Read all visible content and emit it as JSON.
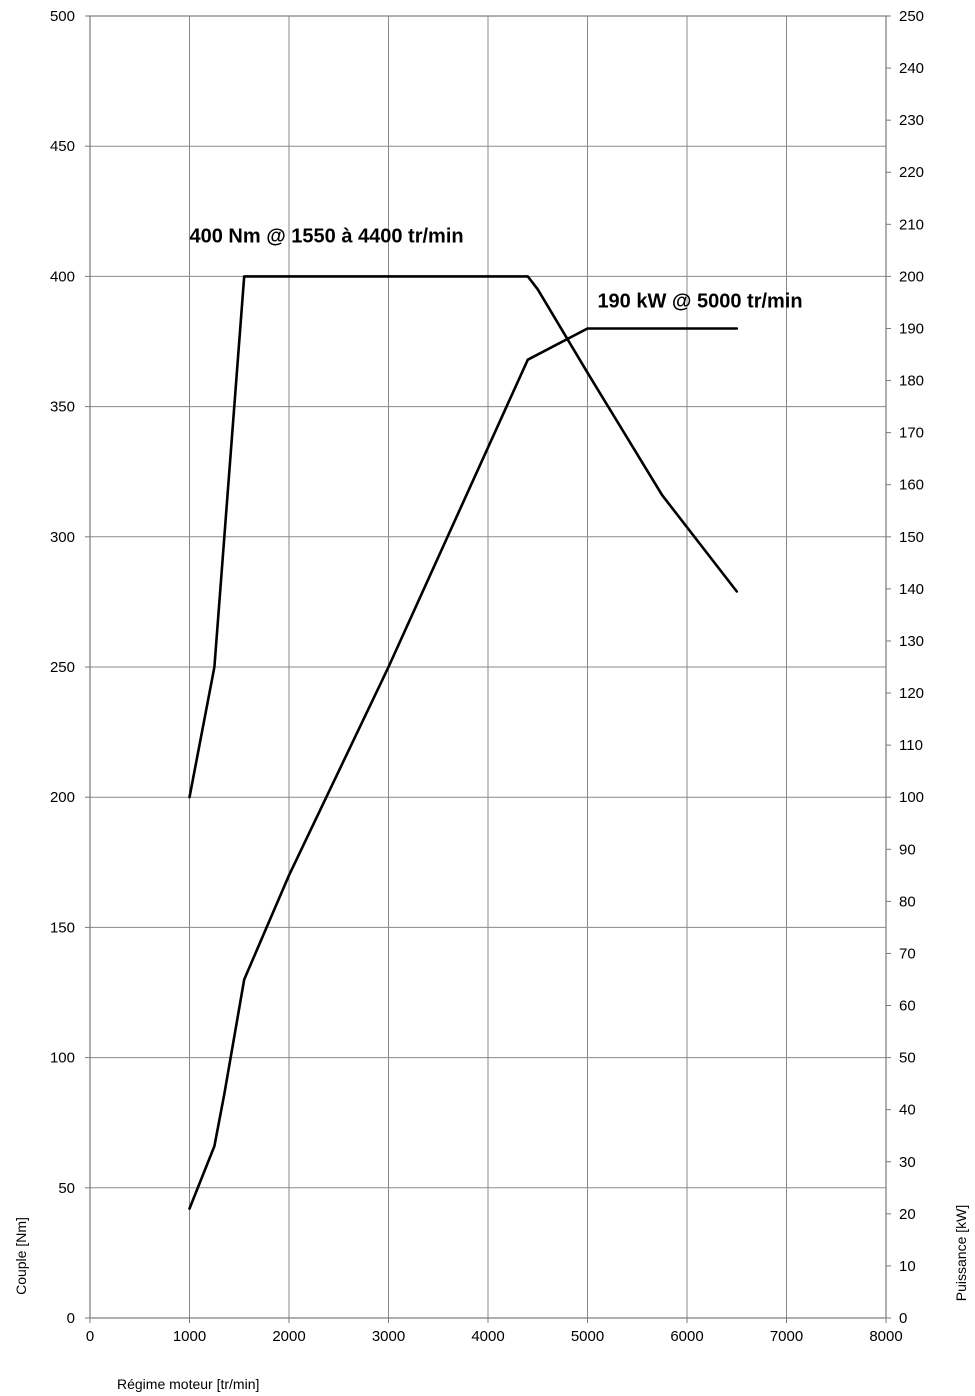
{
  "chart_data": {
    "type": "line",
    "xlabel": "Régime moteur [tr/min]",
    "ylabel_left": "Couple [Nm]",
    "ylabel_right": "Puissance [kW]",
    "xlim": [
      0,
      8000
    ],
    "ylim_left": [
      0,
      500
    ],
    "ylim_right": [
      0,
      250
    ],
    "x_ticks": [
      0,
      1000,
      2000,
      3000,
      4000,
      5000,
      6000,
      7000,
      8000
    ],
    "y_left_ticks": [
      0,
      50,
      100,
      150,
      200,
      250,
      300,
      350,
      400,
      450,
      500
    ],
    "y_right_ticks": [
      0,
      10,
      20,
      30,
      40,
      50,
      60,
      70,
      80,
      90,
      100,
      110,
      120,
      130,
      140,
      150,
      160,
      170,
      180,
      190,
      200,
      210,
      220,
      230,
      240,
      250
    ],
    "grid": true,
    "series": [
      {
        "axis": "left",
        "x": [
          1000,
          1250,
          1550,
          4400,
          4500,
          5000,
          5750,
          6500
        ],
        "values": [
          200,
          250,
          400,
          400,
          395,
          363,
          316,
          279
        ]
      },
      {
        "axis": "right",
        "x": [
          1000,
          1250,
          1350,
          1550,
          2000,
          3000,
          4400,
          5000,
          6500
        ],
        "values": [
          21,
          33,
          43,
          65,
          85,
          125,
          184,
          190,
          190
        ]
      }
    ],
    "annotations": [
      {
        "text": "400 Nm @ 1550 à 4400 tr/min",
        "x": 1000,
        "y": 413,
        "axis": "left"
      },
      {
        "text": "190 kW @ 5000 tr/min",
        "x": 5100,
        "y": 194,
        "axis": "right"
      }
    ]
  }
}
